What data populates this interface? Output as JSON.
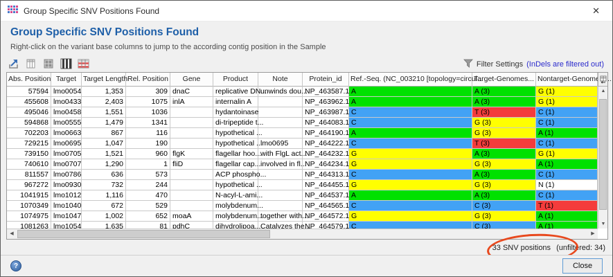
{
  "window": {
    "title": "Group Specific SNV Positions Found"
  },
  "header": {
    "title": "Group Specific SNV Positions Found",
    "subtitle": "Right-click on the variant base columns to jump to the according contig position in the Sample"
  },
  "toolbar": {
    "icons": [
      "export-table-icon",
      "table-copy-icon",
      "table-select-icon",
      "table-columns-icon",
      "table-rows-color-icon"
    ],
    "filter_label": "Filter Settings",
    "filter_note": "(InDels are filtered out)"
  },
  "table": {
    "columns": [
      {
        "label": "Abs. Position",
        "width": 64,
        "align": "right"
      },
      {
        "label": "Target",
        "width": 44,
        "align": "left"
      },
      {
        "label": "Target Length",
        "width": 64,
        "align": "right"
      },
      {
        "label": "Rel. Position",
        "width": 64,
        "align": "right"
      },
      {
        "label": "Gene",
        "width": 62,
        "align": "left"
      },
      {
        "label": "Product",
        "width": 65,
        "align": "left"
      },
      {
        "label": "Note",
        "width": 64,
        "align": "left"
      },
      {
        "label": "Protein_id",
        "width": 67,
        "align": "left"
      },
      {
        "label": "Ref.-Seq. (NC_003210 [topology=circul...",
        "width": 178,
        "align": "left",
        "colored": true
      },
      {
        "label": "Target-Genomes...",
        "width": 92,
        "align": "left",
        "colored": true
      },
      {
        "label": "Nontarget-Genomes ...",
        "width": 89,
        "align": "left",
        "colored": true
      }
    ],
    "rows": [
      [
        "57594",
        "lmo0054",
        "1,353",
        "309",
        "dnaC",
        "replicative DN...",
        "unwinds dou...",
        "NP_463587.1",
        "A",
        "A (3)",
        "G (1)"
      ],
      [
        "455608",
        "lmo0433",
        "2,403",
        "1075",
        "inlA",
        "internalin A",
        "",
        "NP_463962.1",
        "A",
        "A (3)",
        "G (1)"
      ],
      [
        "495046",
        "lmo0458",
        "1,551",
        "1036",
        "",
        "hydantoinase",
        "",
        "NP_463987.1",
        "C",
        "T (3)",
        "C (1)"
      ],
      [
        "594868",
        "lmo0555",
        "1,479",
        "1341",
        "",
        "di-tripeptide t...",
        "",
        "NP_464083.1",
        "C",
        "G (3)",
        "C (1)"
      ],
      [
        "702203",
        "lmo0663",
        "867",
        "116",
        "",
        "hypothetical ...",
        "",
        "NP_464190.1",
        "A",
        "G (3)",
        "A (1)"
      ],
      [
        "729215",
        "lmo0695",
        "1,047",
        "190",
        "",
        "hypothetical ...",
        "lmo0695",
        "NP_464222.1",
        "C",
        "T (3)",
        "C (1)"
      ],
      [
        "739150",
        "lmo0705",
        "1,521",
        "960",
        "flgK",
        "flagellar hoo...",
        "with FlgL act...",
        "NP_464232.1",
        "G",
        "A (3)",
        "G (1)"
      ],
      [
        "740610",
        "lmo0707",
        "1,290",
        "1",
        "fliD",
        "flagellar cap...",
        "involved in fl...",
        "NP_464234.1",
        "G",
        "G (3)",
        "A (1)"
      ],
      [
        "811557",
        "lmo0786",
        "636",
        "573",
        "",
        "ACP phospho...",
        "",
        "NP_464313.1",
        "C",
        "A (3)",
        "C (1)"
      ],
      [
        "967272",
        "lmo0930",
        "732",
        "244",
        "",
        "hypothetical ...",
        "",
        "NP_464455.1",
        "G",
        "G (3)",
        "N (1)"
      ],
      [
        "1041915",
        "lmo1012",
        "1,116",
        "470",
        "",
        "N-acyl-L-ami...",
        "",
        "NP_464537.1",
        "A",
        "A (3)",
        "C (1)"
      ],
      [
        "1070349",
        "lmo1040",
        "672",
        "529",
        "",
        "molybdenum...",
        "",
        "NP_464565.1",
        "C",
        "C (3)",
        "T (1)"
      ],
      [
        "1074975",
        "lmo1047",
        "1,002",
        "652",
        "moaA",
        "molybdenum...",
        "together with...",
        "NP_464572.1",
        "G",
        "G (3)",
        "A (1)"
      ],
      [
        "1081263",
        "lmo1054",
        "1,635",
        "81",
        "pdhC",
        "dihydrolipoa...",
        "Catalyzes the...",
        "NP_464579.1",
        "C",
        "C (3)",
        "A (1)"
      ]
    ]
  },
  "base_colors": {
    "A": "#00e100",
    "C": "#42a2f5",
    "G": "#ffff00",
    "T": "#f43c3c",
    "N": "#ffffff"
  },
  "annotation": {
    "shape": "ellipse",
    "color": "#e8491e"
  },
  "status": {
    "count_text": "33 SNV positions",
    "unfiltered_text": "(unfiltered: 34)"
  },
  "footer": {
    "close_label": "Close",
    "help": "?"
  }
}
